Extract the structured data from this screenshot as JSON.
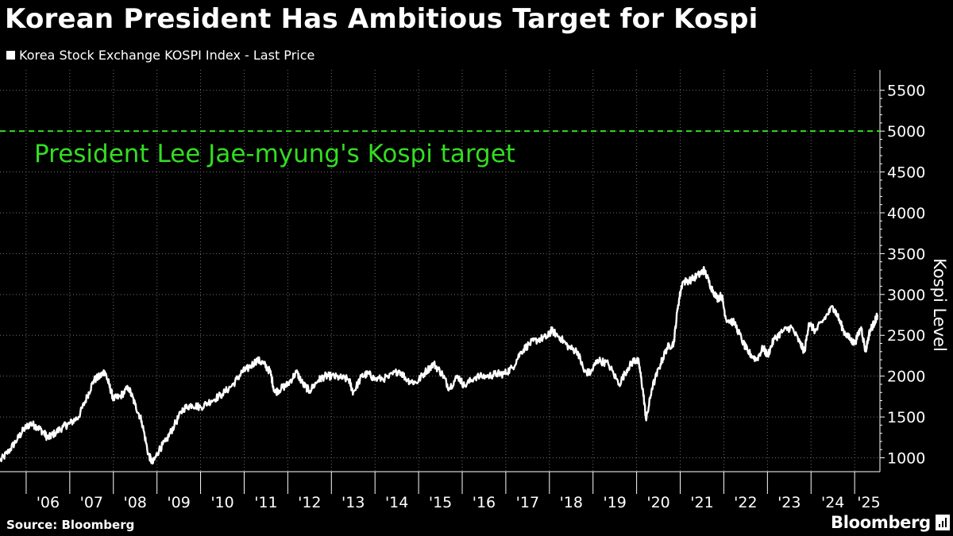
{
  "header": {
    "title": "Korean President Has Ambitious Target for Kospi"
  },
  "footer": {
    "source": "Source: Bloomberg",
    "brand": "Bloomberg"
  },
  "colors": {
    "background": "#000000",
    "series": "#ffffff",
    "target": "#33dd22",
    "grid": "#6f6f6f"
  },
  "chart_data": {
    "type": "line",
    "legend": "Korea Stock Exchange KOSPI Index - Last Price",
    "ylabel": "Kospi Level",
    "ylim": [
      830,
      5750
    ],
    "xlim": [
      2005.4,
      2025.58
    ],
    "y_ticks": [
      1000,
      1500,
      2000,
      2500,
      3000,
      3500,
      4000,
      4500,
      5000,
      5500
    ],
    "x_ticks": [
      {
        "label": "'06",
        "x": 2006
      },
      {
        "label": "'07",
        "x": 2007
      },
      {
        "label": "'08",
        "x": 2008
      },
      {
        "label": "'09",
        "x": 2009
      },
      {
        "label": "'10",
        "x": 2010
      },
      {
        "label": "'11",
        "x": 2011
      },
      {
        "label": "'12",
        "x": 2012
      },
      {
        "label": "'13",
        "x": 2013
      },
      {
        "label": "'14",
        "x": 2014
      },
      {
        "label": "'15",
        "x": 2015
      },
      {
        "label": "'16",
        "x": 2016
      },
      {
        "label": "'17",
        "x": 2017
      },
      {
        "label": "'18",
        "x": 2018
      },
      {
        "label": "'19",
        "x": 2019
      },
      {
        "label": "'20",
        "x": 2020
      },
      {
        "label": "'21",
        "x": 2021
      },
      {
        "label": "'22",
        "x": 2022
      },
      {
        "label": "'23",
        "x": 2023
      },
      {
        "label": "'24",
        "x": 2024
      },
      {
        "label": "'25",
        "x": 2025
      }
    ],
    "reference_line": {
      "y": 5000,
      "label": "President Lee Jae-myung's Kospi target"
    },
    "series": [
      {
        "name": "Korea Stock Exchange KOSPI Index - Last Price",
        "points": [
          [
            2005.4,
            960
          ],
          [
            2005.6,
            1080
          ],
          [
            2005.8,
            1230
          ],
          [
            2005.95,
            1350
          ],
          [
            2006.1,
            1420
          ],
          [
            2006.25,
            1380
          ],
          [
            2006.4,
            1310
          ],
          [
            2006.5,
            1240
          ],
          [
            2006.65,
            1300
          ],
          [
            2006.85,
            1380
          ],
          [
            2007.0,
            1420
          ],
          [
            2007.2,
            1500
          ],
          [
            2007.4,
            1750
          ],
          [
            2007.55,
            1950
          ],
          [
            2007.7,
            2000
          ],
          [
            2007.8,
            2060
          ],
          [
            2007.9,
            1900
          ],
          [
            2008.0,
            1720
          ],
          [
            2008.15,
            1750
          ],
          [
            2008.35,
            1860
          ],
          [
            2008.5,
            1650
          ],
          [
            2008.65,
            1450
          ],
          [
            2008.8,
            1050
          ],
          [
            2008.9,
            930
          ],
          [
            2009.05,
            1100
          ],
          [
            2009.2,
            1200
          ],
          [
            2009.4,
            1400
          ],
          [
            2009.6,
            1600
          ],
          [
            2009.8,
            1650
          ],
          [
            2010.0,
            1620
          ],
          [
            2010.25,
            1700
          ],
          [
            2010.5,
            1780
          ],
          [
            2010.75,
            1900
          ],
          [
            2010.95,
            2050
          ],
          [
            2011.1,
            2100
          ],
          [
            2011.3,
            2200
          ],
          [
            2011.45,
            2150
          ],
          [
            2011.6,
            2050
          ],
          [
            2011.7,
            1800
          ],
          [
            2011.85,
            1850
          ],
          [
            2012.0,
            1900
          ],
          [
            2012.2,
            2050
          ],
          [
            2012.35,
            1900
          ],
          [
            2012.5,
            1820
          ],
          [
            2012.7,
            1950
          ],
          [
            2012.85,
            2000
          ],
          [
            2013.0,
            2000
          ],
          [
            2013.2,
            1980
          ],
          [
            2013.4,
            1960
          ],
          [
            2013.5,
            1800
          ],
          [
            2013.7,
            2000
          ],
          [
            2013.85,
            2030
          ],
          [
            2014.0,
            1960
          ],
          [
            2014.3,
            1980
          ],
          [
            2014.55,
            2070
          ],
          [
            2014.75,
            1950
          ],
          [
            2014.95,
            1920
          ],
          [
            2015.15,
            2050
          ],
          [
            2015.35,
            2150
          ],
          [
            2015.55,
            2020
          ],
          [
            2015.7,
            1850
          ],
          [
            2015.9,
            2000
          ],
          [
            2016.05,
            1880
          ],
          [
            2016.3,
            1990
          ],
          [
            2016.6,
            2000
          ],
          [
            2016.8,
            2030
          ],
          [
            2016.95,
            2026
          ],
          [
            2017.15,
            2100
          ],
          [
            2017.35,
            2300
          ],
          [
            2017.55,
            2400
          ],
          [
            2017.75,
            2450
          ],
          [
            2017.95,
            2480
          ],
          [
            2018.05,
            2560
          ],
          [
            2018.25,
            2470
          ],
          [
            2018.45,
            2350
          ],
          [
            2018.65,
            2300
          ],
          [
            2018.8,
            2050
          ],
          [
            2018.95,
            2040
          ],
          [
            2019.1,
            2200
          ],
          [
            2019.35,
            2150
          ],
          [
            2019.6,
            1900
          ],
          [
            2019.8,
            2100
          ],
          [
            2019.95,
            2200
          ],
          [
            2020.05,
            2170
          ],
          [
            2020.15,
            1800
          ],
          [
            2020.22,
            1457
          ],
          [
            2020.35,
            1850
          ],
          [
            2020.55,
            2150
          ],
          [
            2020.7,
            2350
          ],
          [
            2020.85,
            2400
          ],
          [
            2020.95,
            2870
          ],
          [
            2021.05,
            3150
          ],
          [
            2021.25,
            3180
          ],
          [
            2021.45,
            3250
          ],
          [
            2021.55,
            3300
          ],
          [
            2021.7,
            3100
          ],
          [
            2021.85,
            2950
          ],
          [
            2021.95,
            2990
          ],
          [
            2022.05,
            2700
          ],
          [
            2022.25,
            2650
          ],
          [
            2022.45,
            2400
          ],
          [
            2022.55,
            2300
          ],
          [
            2022.75,
            2200
          ],
          [
            2022.9,
            2350
          ],
          [
            2023.0,
            2250
          ],
          [
            2023.15,
            2450
          ],
          [
            2023.35,
            2550
          ],
          [
            2023.55,
            2600
          ],
          [
            2023.75,
            2400
          ],
          [
            2023.85,
            2300
          ],
          [
            2023.95,
            2650
          ],
          [
            2024.1,
            2550
          ],
          [
            2024.3,
            2700
          ],
          [
            2024.5,
            2850
          ],
          [
            2024.6,
            2750
          ],
          [
            2024.75,
            2550
          ],
          [
            2024.9,
            2450
          ],
          [
            2025.0,
            2400
          ],
          [
            2025.15,
            2600
          ],
          [
            2025.25,
            2300
          ],
          [
            2025.35,
            2560
          ],
          [
            2025.45,
            2650
          ],
          [
            2025.52,
            2750
          ]
        ]
      }
    ]
  }
}
